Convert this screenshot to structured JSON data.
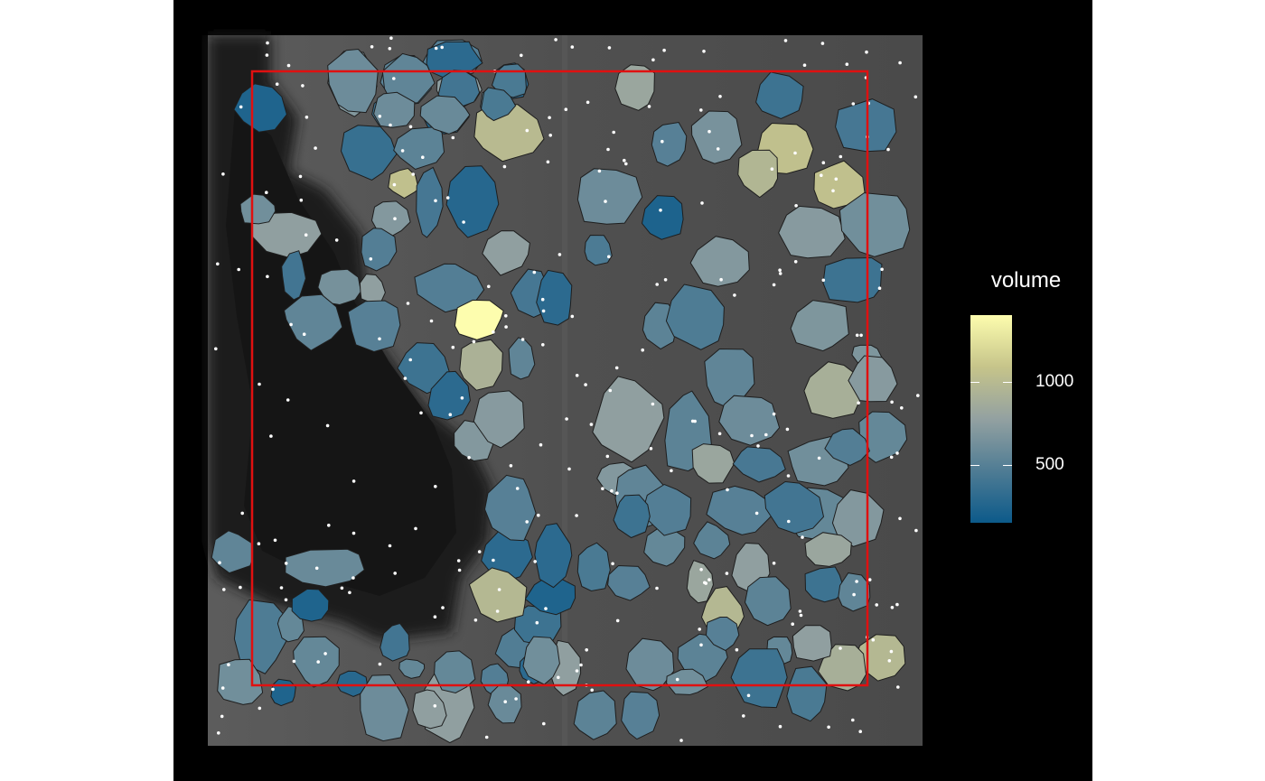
{
  "legend": {
    "title": "volume",
    "ticks": [
      {
        "label": "1000",
        "value": 1000
      },
      {
        "label": "500",
        "value": 500
      }
    ],
    "range": [
      150,
      1400
    ],
    "colors": [
      "#0c5a8a",
      "#4f7c94",
      "#93a1a1",
      "#c6c48a",
      "#fdfdae"
    ]
  },
  "image": {
    "background_color": "#000000",
    "tissue_color": "#555555",
    "dark_region_color": "#1c1c1c",
    "roi_box_color": "#e01010",
    "point_color": "#ffffff",
    "cell_border_color": "#1e1e1e"
  },
  "cells": [
    {
      "id": 1,
      "volume": 700
    },
    {
      "id": 2,
      "volume": 520
    },
    {
      "id": 3,
      "volume": 480
    },
    {
      "id": 4,
      "volume": 300
    },
    {
      "id": 5,
      "volume": 750
    },
    {
      "id": 6,
      "volume": 560
    },
    {
      "id": 7,
      "volume": 380
    },
    {
      "id": 8,
      "volume": 250
    },
    {
      "id": 9,
      "volume": 1000
    },
    {
      "id": 10,
      "volume": 350
    },
    {
      "id": 11,
      "volume": 520
    },
    {
      "id": 12,
      "volume": 1050
    },
    {
      "id": 13,
      "volume": 420
    },
    {
      "id": 14,
      "volume": 270
    },
    {
      "id": 15,
      "volume": 700
    },
    {
      "id": 16,
      "volume": 480
    },
    {
      "id": 17,
      "volume": 760
    },
    {
      "id": 18,
      "volume": 620
    },
    {
      "id": 19,
      "volume": 400
    },
    {
      "id": 20,
      "volume": 640
    },
    {
      "id": 21,
      "volume": 760
    },
    {
      "id": 22,
      "volume": 480
    },
    {
      "id": 23,
      "volume": 1400
    },
    {
      "id": 24,
      "volume": 920
    },
    {
      "id": 25,
      "volume": 540
    },
    {
      "id": 26,
      "volume": 760
    },
    {
      "id": 27,
      "volume": 420
    },
    {
      "id": 28,
      "volume": 300
    },
    {
      "id": 29,
      "volume": 820
    },
    {
      "id": 30,
      "volume": 500
    },
    {
      "id": 31,
      "volume": 650
    },
    {
      "id": 32,
      "volume": 380
    },
    {
      "id": 33,
      "volume": 420
    },
    {
      "id": 34,
      "volume": 1050
    },
    {
      "id": 35,
      "volume": 960
    },
    {
      "id": 36,
      "volume": 1050
    },
    {
      "id": 37,
      "volume": 600
    },
    {
      "id": 38,
      "volume": 230
    },
    {
      "id": 39,
      "volume": 450
    },
    {
      "id": 40,
      "volume": 700
    },
    {
      "id": 41,
      "volume": 720
    },
    {
      "id": 42,
      "volume": 620
    },
    {
      "id": 43,
      "volume": 380
    },
    {
      "id": 44,
      "volume": 520
    },
    {
      "id": 45,
      "volume": 460
    },
    {
      "id": 46,
      "volume": 680
    },
    {
      "id": 47,
      "volume": 680
    },
    {
      "id": 48,
      "volume": 900
    },
    {
      "id": 49,
      "volume": 540
    },
    {
      "id": 50,
      "volume": 600
    },
    {
      "id": 51,
      "volume": 520
    },
    {
      "id": 52,
      "volume": 760
    },
    {
      "id": 53,
      "volume": 820
    },
    {
      "id": 54,
      "volume": 430
    },
    {
      "id": 55,
      "volume": 620
    },
    {
      "id": 56,
      "volume": 560
    },
    {
      "id": 57,
      "volume": 720
    },
    {
      "id": 58,
      "volume": 480
    },
    {
      "id": 59,
      "volume": 560
    },
    {
      "id": 60,
      "volume": 700
    },
    {
      "id": 61,
      "volume": 500
    },
    {
      "id": 62,
      "volume": 400
    },
    {
      "id": 63,
      "volume": 700
    },
    {
      "id": 64,
      "volume": 540
    },
    {
      "id": 65,
      "volume": 560
    },
    {
      "id": 66,
      "volume": 520
    },
    {
      "id": 67,
      "volume": 820
    },
    {
      "id": 68,
      "volume": 760
    },
    {
      "id": 69,
      "volume": 820
    },
    {
      "id": 70,
      "volume": 380
    },
    {
      "id": 71,
      "volume": 540
    },
    {
      "id": 72,
      "volume": 980
    },
    {
      "id": 73,
      "volume": 900
    },
    {
      "id": 74,
      "volume": 760
    },
    {
      "id": 75,
      "volume": 560
    },
    {
      "id": 76,
      "volume": 520
    },
    {
      "id": 77,
      "volume": 980
    },
    {
      "id": 78,
      "volume": 380
    },
    {
      "id": 79,
      "volume": 440
    },
    {
      "id": 80,
      "volume": 520
    },
    {
      "id": 81,
      "volume": 600
    },
    {
      "id": 82,
      "volume": 620
    },
    {
      "id": 83,
      "volume": 500
    },
    {
      "id": 84,
      "volume": 520
    },
    {
      "id": 85,
      "volume": 760
    },
    {
      "id": 86,
      "volume": 470
    },
    {
      "id": 87,
      "volume": 380
    },
    {
      "id": 88,
      "volume": 240
    },
    {
      "id": 89,
      "volume": 440
    },
    {
      "id": 90,
      "volume": 300
    },
    {
      "id": 91,
      "volume": 300
    },
    {
      "id": 92,
      "volume": 980
    },
    {
      "id": 93,
      "volume": 500
    },
    {
      "id": 94,
      "volume": 400
    },
    {
      "id": 95,
      "volume": 700
    },
    {
      "id": 96,
      "volume": 720
    },
    {
      "id": 97,
      "volume": 380
    },
    {
      "id": 98,
      "volume": 300
    },
    {
      "id": 99,
      "volume": 500
    },
    {
      "id": 100,
      "volume": 540
    },
    {
      "id": 101,
      "volume": 580
    },
    {
      "id": 102,
      "volume": 540
    },
    {
      "id": 103,
      "volume": 460
    },
    {
      "id": 104,
      "volume": 560
    },
    {
      "id": 105,
      "volume": 240
    },
    {
      "id": 106,
      "volume": 560
    },
    {
      "id": 107,
      "volume": 280
    },
    {
      "id": 108,
      "volume": 600
    },
    {
      "id": 109,
      "volume": 760
    },
    {
      "id": 110,
      "volume": 560
    },
    {
      "id": 111,
      "volume": 480
    },
    {
      "id": 112,
      "volume": 300
    },
    {
      "id": 113,
      "volume": 240
    },
    {
      "id": 114,
      "volume": 620
    },
    {
      "id": 115,
      "volume": 240
    },
    {
      "id": 116,
      "volume": 500
    },
    {
      "id": 117,
      "volume": 480
    },
    {
      "id": 118,
      "volume": 500
    },
    {
      "id": 119,
      "volume": 380
    },
    {
      "id": 120,
      "volume": 620
    },
    {
      "id": 121,
      "volume": 760
    },
    {
      "id": 122,
      "volume": 580
    },
    {
      "id": 123,
      "volume": 560
    },
    {
      "id": 124,
      "volume": 600
    },
    {
      "id": 125,
      "volume": 540
    },
    {
      "id": 126,
      "volume": 300
    },
    {
      "id": 127,
      "volume": 440
    },
    {
      "id": 128,
      "volume": 400
    },
    {
      "id": 129,
      "volume": 440
    },
    {
      "id": 130,
      "volume": 600
    },
    {
      "id": 131,
      "volume": 580
    }
  ]
}
